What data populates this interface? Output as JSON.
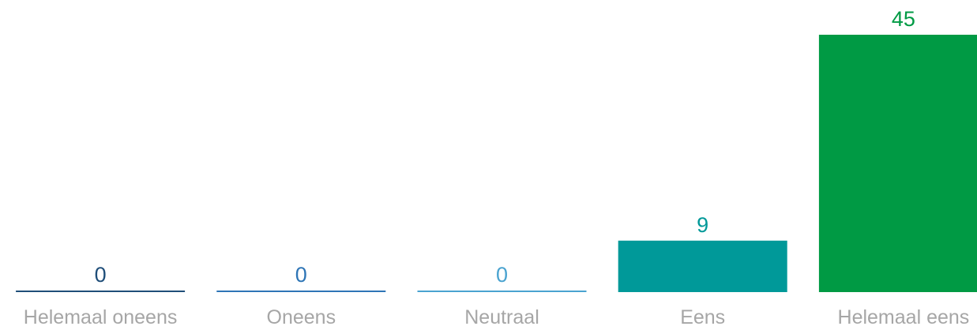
{
  "chart_data": {
    "type": "bar",
    "categories": [
      "Helemaal oneens",
      "Oneens",
      "Neutraal",
      "Eens",
      "Helemaal eens"
    ],
    "values": [
      0,
      0,
      0,
      9,
      45
    ],
    "colors": [
      "#1f4e79",
      "#2e75b6",
      "#4aa3d0",
      "#009999",
      "#009a44"
    ],
    "category_label_color": "#a6a6a6",
    "ylim": [
      0,
      45
    ],
    "grid": false,
    "legend": "none"
  }
}
